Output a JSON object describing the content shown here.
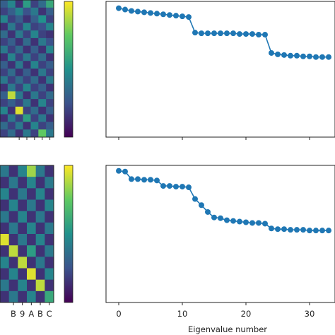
{
  "chart_data": [
    {
      "type": "heatmap",
      "panel": "top-left",
      "x_tick_labels": [],
      "colormap": "viridis",
      "colorbar": true,
      "rows": 18,
      "cols": 7,
      "values": [
        [
          0.3,
          0.45,
          0.15,
          0.55,
          0.2,
          0.35,
          0.6
        ],
        [
          0.2,
          0.3,
          0.45,
          0.25,
          0.4,
          0.15,
          0.3
        ],
        [
          0.45,
          0.2,
          0.3,
          0.15,
          0.3,
          0.5,
          0.2
        ],
        [
          0.15,
          0.4,
          0.2,
          0.45,
          0.2,
          0.25,
          0.45
        ],
        [
          0.35,
          0.15,
          0.4,
          0.2,
          0.45,
          0.2,
          0.15
        ],
        [
          0.2,
          0.3,
          0.15,
          0.35,
          0.15,
          0.4,
          0.25
        ],
        [
          0.4,
          0.2,
          0.35,
          0.15,
          0.3,
          0.15,
          0.45
        ],
        [
          0.15,
          0.45,
          0.2,
          0.4,
          0.2,
          0.35,
          0.15
        ],
        [
          0.3,
          0.15,
          0.4,
          0.15,
          0.45,
          0.2,
          0.3
        ],
        [
          0.2,
          0.35,
          0.15,
          0.3,
          0.15,
          0.4,
          0.2
        ],
        [
          0.4,
          0.2,
          0.35,
          0.2,
          0.35,
          0.15,
          0.4
        ],
        [
          0.15,
          0.4,
          0.2,
          0.45,
          0.2,
          0.3,
          0.15
        ],
        [
          0.3,
          0.9,
          0.4,
          0.15,
          0.4,
          0.2,
          0.35
        ],
        [
          0.2,
          0.3,
          0.2,
          0.4,
          0.15,
          0.45,
          0.2
        ],
        [
          0.45,
          0.15,
          0.95,
          0.2,
          0.35,
          0.15,
          0.3
        ],
        [
          0.15,
          0.4,
          0.2,
          0.55,
          0.2,
          0.4,
          0.15
        ],
        [
          0.35,
          0.2,
          0.4,
          0.15,
          0.45,
          0.2,
          0.3
        ],
        [
          0.2,
          0.35,
          0.15,
          0.4,
          0.2,
          0.75,
          0.4
        ]
      ]
    },
    {
      "type": "line",
      "panel": "top-right",
      "xlim": [
        -2,
        34
      ],
      "ylim": [
        0,
        1
      ],
      "x_ticks": [
        0,
        10,
        20,
        30
      ],
      "x_tick_labels": [],
      "series": [
        {
          "color": "#1f77b4",
          "x": [
            0,
            1,
            2,
            3,
            4,
            5,
            6,
            7,
            8,
            9,
            10,
            11,
            12,
            13,
            14,
            15,
            16,
            17,
            18,
            19,
            20,
            21,
            22,
            23,
            24,
            25,
            26,
            27,
            28,
            29,
            30,
            31,
            32,
            33
          ],
          "y": [
            0.95,
            0.94,
            0.93,
            0.925,
            0.92,
            0.915,
            0.91,
            0.905,
            0.9,
            0.895,
            0.89,
            0.885,
            0.77,
            0.765,
            0.765,
            0.765,
            0.765,
            0.765,
            0.765,
            0.76,
            0.76,
            0.76,
            0.755,
            0.755,
            0.62,
            0.61,
            0.605,
            0.6,
            0.6,
            0.595,
            0.595,
            0.59,
            0.59,
            0.59
          ]
        }
      ]
    },
    {
      "type": "heatmap",
      "panel": "bottom-left",
      "x_tick_labels": [
        "B",
        "9",
        "A",
        "B",
        "C"
      ],
      "colormap": "viridis",
      "colorbar": true,
      "rows": 12,
      "cols": 6,
      "values": [
        [
          0.4,
          0.15,
          0.45,
          0.85,
          0.4,
          0.15
        ],
        [
          0.15,
          0.4,
          0.15,
          0.45,
          0.15,
          0.4
        ],
        [
          0.45,
          0.15,
          0.4,
          0.15,
          0.45,
          0.15
        ],
        [
          0.15,
          0.45,
          0.15,
          0.4,
          0.15,
          0.45
        ],
        [
          0.4,
          0.15,
          0.45,
          0.15,
          0.4,
          0.15
        ],
        [
          0.15,
          0.4,
          0.15,
          0.45,
          0.15,
          0.4
        ],
        [
          0.95,
          0.15,
          0.4,
          0.15,
          0.45,
          0.15
        ],
        [
          0.15,
          0.9,
          0.15,
          0.55,
          0.15,
          0.4
        ],
        [
          0.45,
          0.15,
          0.9,
          0.15,
          0.4,
          0.15
        ],
        [
          0.15,
          0.45,
          0.15,
          0.95,
          0.15,
          0.45
        ],
        [
          0.4,
          0.15,
          0.45,
          0.15,
          0.9,
          0.15
        ],
        [
          0.15,
          0.4,
          0.15,
          0.45,
          0.15,
          0.6
        ]
      ]
    },
    {
      "type": "line",
      "panel": "bottom-right",
      "xlabel": "Eigenvalue number",
      "xlim": [
        -2,
        34
      ],
      "ylim": [
        0,
        1
      ],
      "x_ticks": [
        0,
        10,
        20,
        30
      ],
      "x_tick_labels": [
        "0",
        "10",
        "20",
        "30"
      ],
      "series": [
        {
          "color": "#1f77b4",
          "x": [
            0,
            1,
            2,
            3,
            4,
            5,
            6,
            7,
            8,
            9,
            10,
            11,
            12,
            13,
            14,
            15,
            16,
            17,
            18,
            19,
            20,
            21,
            22,
            23,
            24,
            25,
            26,
            27,
            28,
            29,
            30,
            31,
            32,
            33
          ],
          "y": [
            0.96,
            0.955,
            0.9,
            0.9,
            0.895,
            0.895,
            0.89,
            0.85,
            0.85,
            0.845,
            0.845,
            0.84,
            0.755,
            0.71,
            0.66,
            0.62,
            0.615,
            0.6,
            0.595,
            0.59,
            0.585,
            0.58,
            0.58,
            0.575,
            0.54,
            0.535,
            0.535,
            0.53,
            0.53,
            0.53,
            0.525,
            0.525,
            0.525,
            0.525
          ]
        }
      ]
    }
  ]
}
